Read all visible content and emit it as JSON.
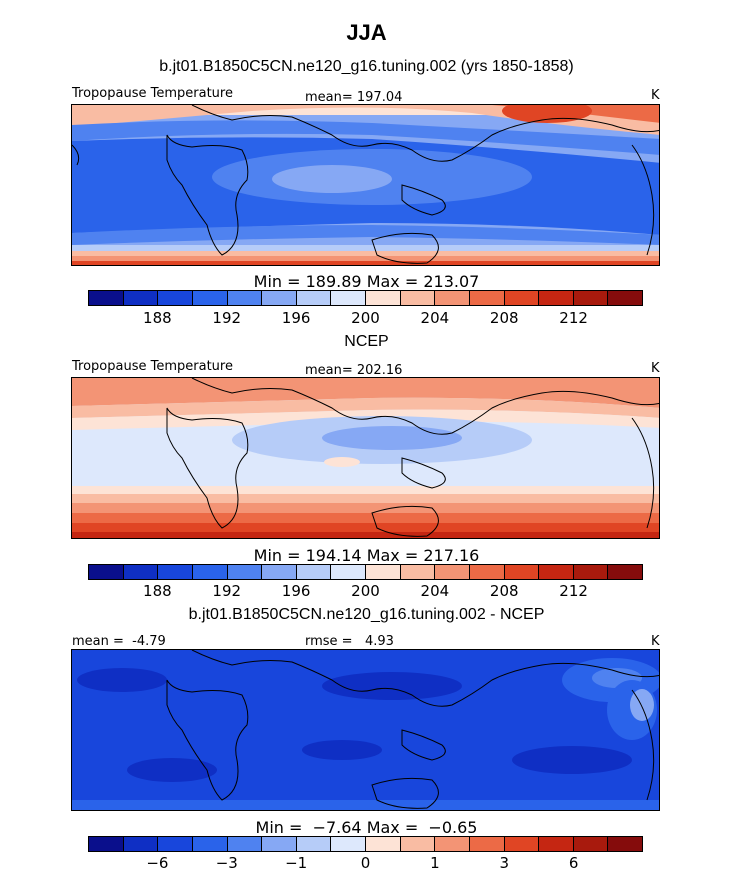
{
  "page": {
    "season": "JJA",
    "colors": {
      "scale": [
        "#0a0f8c",
        "#0f2fc4",
        "#1846dc",
        "#2a63ea",
        "#4f82f0",
        "#86a8f4",
        "#b6ccf8",
        "#dde8fc",
        "#fde3d6",
        "#f9bca3",
        "#f39475",
        "#ec6a46",
        "#e04524",
        "#c52612",
        "#a81a0d",
        "#850c0c"
      ]
    }
  },
  "panels": [
    {
      "id": "model",
      "heading": "b.jt01.B1850C5CN.ne120_g16.tuning.002 (yrs 1850-1858)",
      "field_label": "Tropopause Temperature",
      "stat1": "mean= 197.04",
      "stat2": "",
      "units": "K",
      "minmax": "Min = 189.89 Max = 213.07",
      "ticks": [
        "188",
        "192",
        "196",
        "200",
        "204",
        "208",
        "212"
      ]
    },
    {
      "id": "obs",
      "heading": "NCEP",
      "field_label": "Tropopause Temperature",
      "stat1": "mean= 202.16",
      "stat2": "",
      "units": "K",
      "minmax": "Min = 194.14 Max = 217.16",
      "ticks": [
        "188",
        "192",
        "196",
        "200",
        "204",
        "208",
        "212"
      ]
    },
    {
      "id": "diff",
      "heading": "b.jt01.B1850C5CN.ne120_g16.tuning.002 - NCEP",
      "field_label": "mean =  -4.79",
      "stat1": "rmse =   4.93",
      "stat2": "",
      "units": "K",
      "minmax": "Min =  −7.64 Max =  −0.65",
      "ticks": [
        "−6",
        "−3",
        "−1",
        "0",
        "1",
        "3",
        "6"
      ]
    }
  ]
}
